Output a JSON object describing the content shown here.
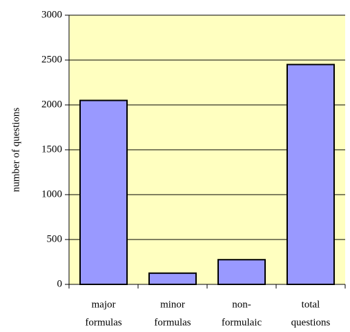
{
  "chart_data": {
    "type": "bar",
    "y_label": "number of questions",
    "categories": [
      [
        "major",
        "formulas"
      ],
      [
        "minor",
        "formulas"
      ],
      [
        "non-",
        "formulaic"
      ],
      [
        "total",
        "questions"
      ]
    ],
    "values": [
      2050,
      125,
      275,
      2450
    ],
    "color": "#9999ff",
    "background": "#ffffc0",
    "ylim": [
      0,
      3000
    ],
    "yticks": [
      0,
      500,
      1000,
      1500,
      2000,
      2500,
      3000
    ],
    "grid": true
  }
}
